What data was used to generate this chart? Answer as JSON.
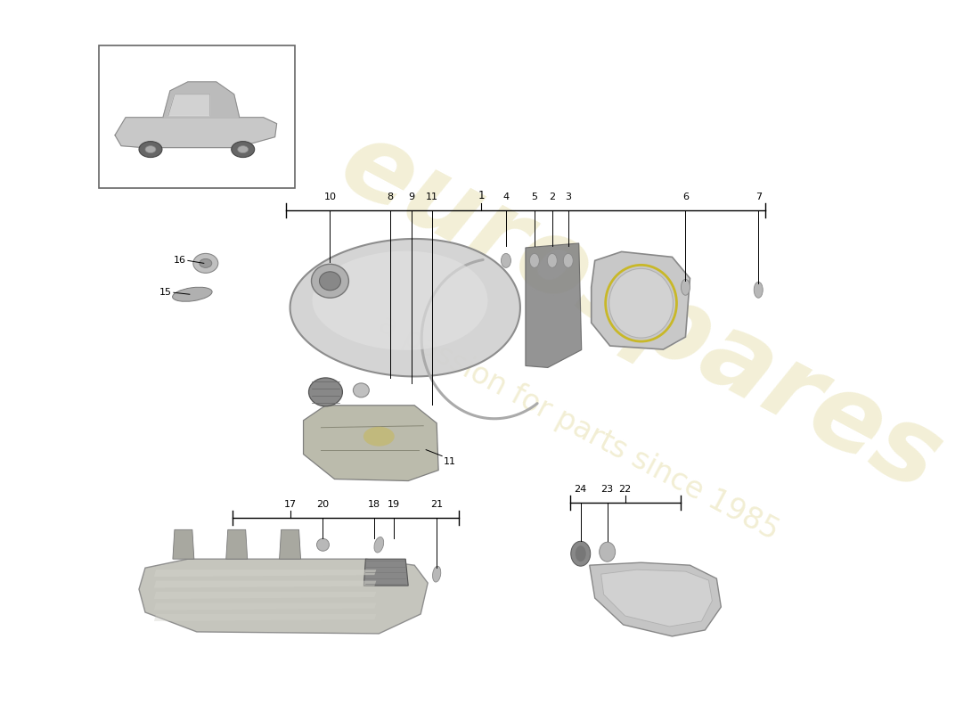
{
  "bg_color": "#ffffff",
  "watermark_text1": "eurospares",
  "watermark_text2": "a passion for parts since 1985",
  "watermark_color": "#d4c870",
  "watermark_alpha": 0.3,
  "gray_light": "#d5d5d5",
  "gray_mid": "#b8b8b8",
  "gray_dark": "#888888",
  "gray_very_dark": "#555555",
  "yellow_accent": "#c8b400"
}
